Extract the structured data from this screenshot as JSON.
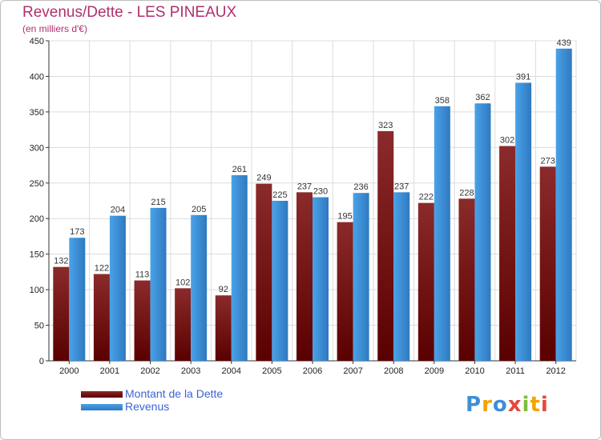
{
  "chart_data": {
    "type": "bar",
    "title": "Revenus/Dette - LES PINEAUX",
    "subtitle": "(en milliers d'€)",
    "categories": [
      "2000",
      "2001",
      "2002",
      "2003",
      "2004",
      "2005",
      "2006",
      "2007",
      "2008",
      "2009",
      "2010",
      "2011",
      "2012"
    ],
    "series": [
      {
        "name": "Montant de la Dette",
        "color": "#7a1a1a",
        "values": [
          132,
          122,
          113,
          102,
          92,
          249,
          237,
          195,
          323,
          222,
          228,
          302,
          273
        ]
      },
      {
        "name": "Revenus",
        "color": "#3d8fd6",
        "values": [
          173,
          204,
          215,
          205,
          261,
          225,
          230,
          236,
          237,
          358,
          362,
          391,
          439
        ]
      }
    ],
    "ylim": [
      0,
      450
    ],
    "yticks": [
      0,
      50,
      100,
      150,
      200,
      250,
      300,
      350,
      400,
      450
    ],
    "grid": true,
    "legend_position": "bottom-left"
  },
  "brand": {
    "letters": [
      "P",
      "r",
      "o",
      "x",
      "i",
      "t",
      "i"
    ],
    "colors": [
      "#3d8fd6",
      "#f2a400",
      "#3d8fd6",
      "#e5483c",
      "#7cbf3a",
      "#f2a400",
      "#e5483c"
    ]
  }
}
